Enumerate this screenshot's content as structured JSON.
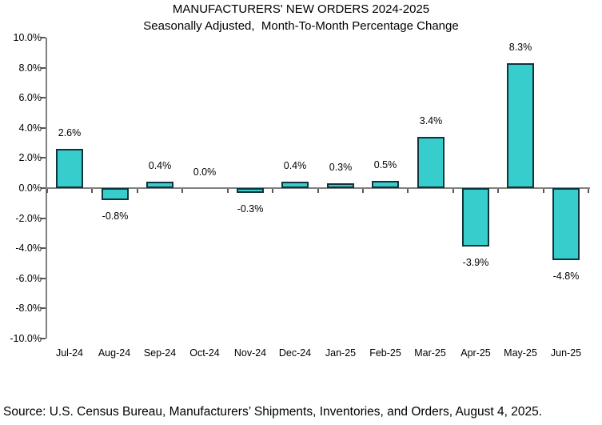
{
  "chart_data": {
    "type": "bar",
    "title": "MANUFACTURERS' NEW ORDERS 2024-2025",
    "subtitle": "Seasonally Adjusted,  Month-To-Month Percentage Change",
    "categories": [
      "Jul-24",
      "Aug-24",
      "Sep-24",
      "Oct-24",
      "Nov-24",
      "Dec-24",
      "Jan-25",
      "Feb-25",
      "Mar-25",
      "Apr-25",
      "May-25",
      "Jun-25"
    ],
    "values": [
      2.6,
      -0.8,
      0.4,
      0.0,
      -0.3,
      0.4,
      0.3,
      0.5,
      3.4,
      -3.9,
      8.3,
      -4.8
    ],
    "data_labels": [
      "2.6%",
      "-0.8%",
      "0.4%",
      "0.0%",
      "-0.3%",
      "0.4%",
      "0.3%",
      "0.5%",
      "3.4%",
      "-3.9%",
      "8.3%",
      "-4.8%"
    ],
    "xlabel": "",
    "ylabel": "",
    "ylim": [
      -10,
      10
    ],
    "ytick_step": 2,
    "ytick_labels": [
      "-10.0%",
      "-8.0%",
      "-6.0%",
      "-4.0%",
      "-2.0%",
      "0.0%",
      "2.0%",
      "4.0%",
      "6.0%",
      "8.0%",
      "10.0%"
    ],
    "grid": false,
    "legend": "none",
    "bar_color": "#38CDCD",
    "bar_border_color": "#10333C",
    "axis_line_color": "#808080",
    "tick_color": "#595959"
  },
  "source_note": "Source: U.S. Census Bureau, Manufacturers’ Shipments, Inventories, and Orders, August 4, 2025."
}
